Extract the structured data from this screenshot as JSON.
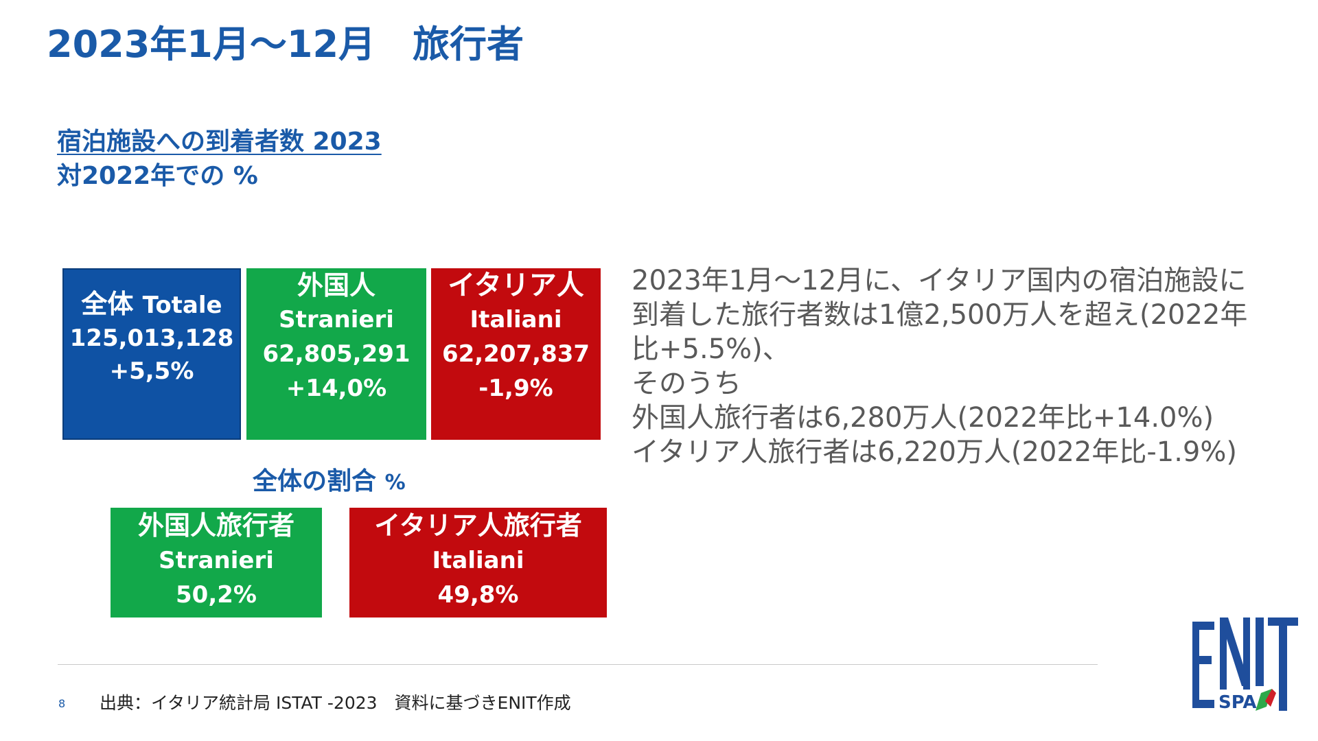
{
  "title": "2023年1月～12月　旅行者",
  "subtitle": {
    "line1": "宿泊施設への到着者数 2023",
    "line2": "対2022年での %"
  },
  "boxes": {
    "totale": {
      "label_jp": "全体",
      "label_it": "Totale",
      "value": "125,013,128",
      "change": "+5,5%",
      "color": "#0f52a4"
    },
    "stranieri": {
      "label_jp": "外国人",
      "label_it": "Stranieri",
      "value": "62,805,291",
      "change": "+14,0%",
      "color": "#12a84a"
    },
    "italiani": {
      "label_jp": "イタリア人",
      "label_it": "Italiani",
      "value": "62,207,837",
      "change": "-1,9%",
      "color": "#c20a0e"
    }
  },
  "share": {
    "label": "全体の割合",
    "label_unit": "%",
    "stranieri": {
      "label_jp": "外国人旅行者",
      "label_it": "Stranieri",
      "value": "50,2%"
    },
    "italiani": {
      "label_jp": "イタリア人旅行者",
      "label_it": "Italiani",
      "value": "49,8%"
    }
  },
  "description": [
    "2023年1月～12月に、イタリア国内の宿泊施設に",
    "到着した旅行者数は1億2,500万人を超え(2022年",
    "比+5.5%)、",
    "そのうち",
    "外国人旅行者は6,280万人(2022年比+14.0%)",
    "イタリア人旅行者は6,220万人(2022年比-1.9%)"
  ],
  "footer": {
    "page_number": "8",
    "source": "出典：イタリア統計局 ISTAT -2023　資料に基づきENIT作成"
  },
  "logo": {
    "text": "ENIT",
    "sub": "SPA",
    "color": "#1f4e9c",
    "accent_green": "#2ea84a",
    "accent_red": "#d0202a"
  }
}
